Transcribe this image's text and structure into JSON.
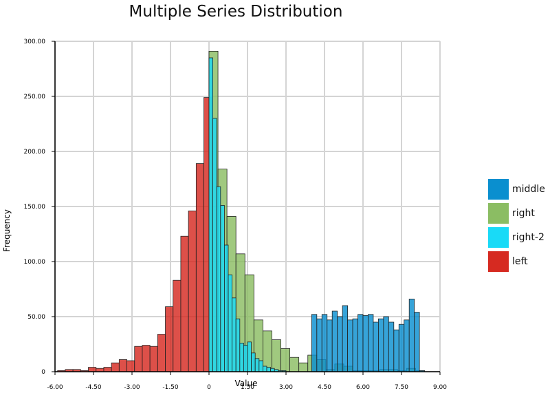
{
  "chart_data": {
    "type": "bar",
    "title": "Multiple Series Distribution",
    "xlabel": "Value",
    "ylabel": "Frequency",
    "xlim": [
      -6.0,
      9.0
    ],
    "ylim": [
      0,
      300
    ],
    "xticks": [
      "-6.00",
      "-4.50",
      "-3.00",
      "-1.50",
      "0",
      "1.50",
      "3.00",
      "4.50",
      "6.00",
      "7.50",
      "9.00"
    ],
    "yticks": [
      "0",
      "50.00",
      "100.00",
      "150.00",
      "200.00",
      "250.00",
      "300.00"
    ],
    "grid": true,
    "legend_position": "right",
    "series": [
      {
        "name": "left",
        "color": "#d62a21",
        "bin_start": -5.9,
        "bin_width": 0.3,
        "values": [
          1,
          2,
          2,
          1,
          4,
          3,
          4,
          8,
          11,
          10,
          23,
          24,
          23,
          34,
          59,
          83,
          123,
          146,
          189,
          249
        ]
      },
      {
        "name": "right",
        "color": "#8bbd63",
        "bin_start": 0.0,
        "bin_width": 0.35,
        "values": [
          291,
          184,
          141,
          107,
          88,
          47,
          37,
          29,
          21,
          13,
          8,
          15,
          11,
          2,
          7,
          5,
          1,
          1,
          1,
          2,
          2,
          1,
          3,
          1
        ]
      },
      {
        "name": "right-2",
        "color": "#19daf7",
        "bin_start": 0.0,
        "bin_width": 0.15,
        "values": [
          285,
          230,
          168,
          151,
          115,
          88,
          67,
          48,
          26,
          24,
          27,
          17,
          12,
          10,
          5,
          4,
          3,
          2,
          1,
          1
        ]
      },
      {
        "name": "middle",
        "color": "#0a8fcf",
        "bin_start": 4.0,
        "bin_width": 0.2,
        "values": [
          52,
          48,
          52,
          47,
          55,
          50,
          60,
          47,
          48,
          52,
          51,
          52,
          45,
          48,
          50,
          45,
          38,
          43,
          47,
          66,
          54,
          1
        ]
      }
    ],
    "legend_order": [
      "middle",
      "right",
      "right-2",
      "left"
    ]
  }
}
